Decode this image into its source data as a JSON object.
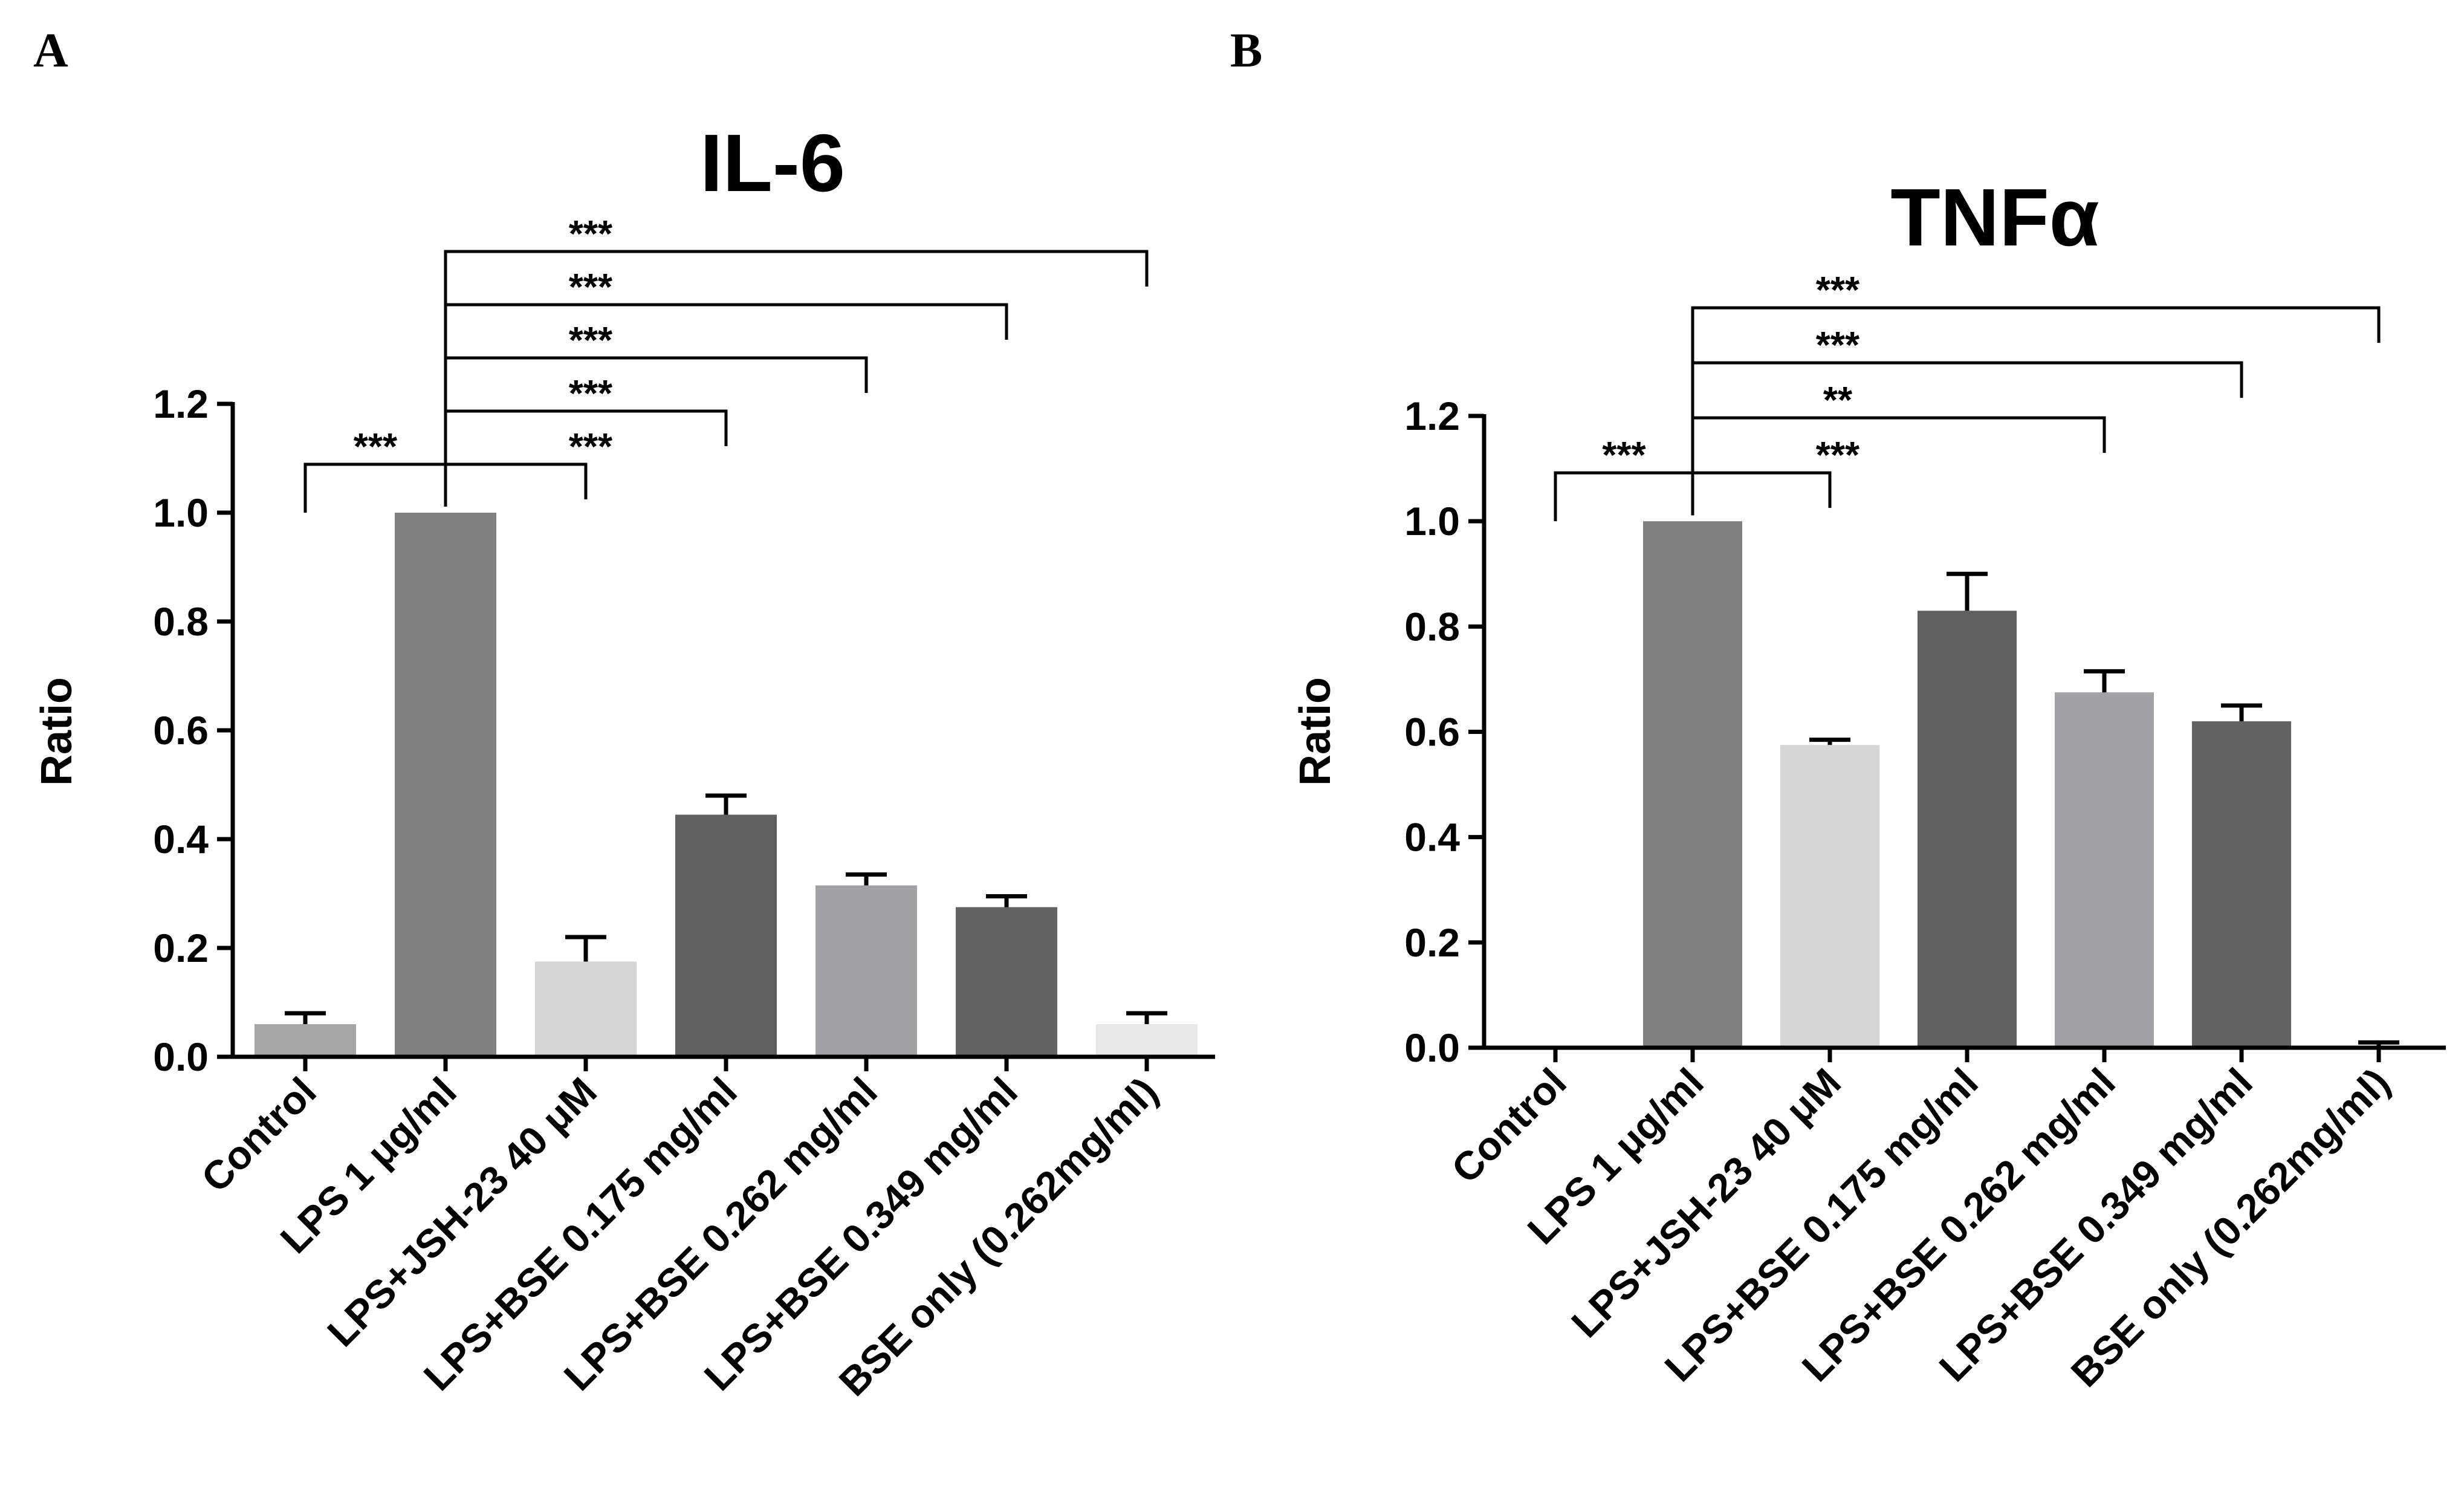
{
  "panels": {
    "A": "A",
    "B": "B"
  },
  "colors": {
    "Control": "#a6a6a6",
    "LPS 1 μg/ml": "#808080",
    "LPS+JSH-23 40  μM": "#d6d6d6",
    "LPS+BSE 0.175 mg/ml": "#5f5f5f",
    "LPS+BSE 0.262 mg/ml": "#a2a2a6",
    "LPS+BSE 0.349 mg/ml": "#636363",
    "BSE only (0.262mg/ml)": "#e6e6e6"
  },
  "chart_data": [
    {
      "type": "bar",
      "panel": "A",
      "title": "IL-6",
      "xlabel": "",
      "ylabel": "Ratio",
      "ylim": [
        0,
        1.2
      ],
      "yticks": [
        "0.0",
        "0.2",
        "0.4",
        "0.6",
        "0.8",
        "1.0",
        "1.2"
      ],
      "categories": [
        "Control",
        "LPS 1 μg/ml",
        "LPS+JSH-23 40  μM",
        "LPS+BSE 0.175 mg/ml",
        "LPS+BSE 0.262 mg/ml",
        "LPS+BSE 0.349 mg/ml",
        "BSE only (0.262mg/ml)"
      ],
      "values": [
        0.06,
        1.0,
        0.175,
        0.445,
        0.315,
        0.275,
        0.06
      ],
      "errors": [
        0.02,
        0.0,
        0.045,
        0.035,
        0.02,
        0.02,
        0.02
      ],
      "significance": [
        {
          "from": 0,
          "to": 1,
          "label": "***"
        },
        {
          "from": 1,
          "to": 2,
          "label": "***"
        },
        {
          "from": 1,
          "to": 3,
          "label": "***"
        },
        {
          "from": 1,
          "to": 4,
          "label": "***"
        },
        {
          "from": 1,
          "to": 5,
          "label": "***"
        },
        {
          "from": 1,
          "to": 6,
          "label": "***"
        }
      ]
    },
    {
      "type": "bar",
      "panel": "B",
      "title": "TNFα",
      "xlabel": "",
      "ylabel": "Ratio",
      "ylim": [
        0,
        1.2
      ],
      "yticks": [
        "0.0",
        "0.2",
        "0.4",
        "0.6",
        "0.8",
        "1.0",
        "1.2"
      ],
      "categories": [
        "Control",
        "LPS 1 μg/ml",
        "LPS+JSH-23 40  μM",
        "LPS+BSE 0.175 mg/ml",
        "LPS+BSE 0.262 mg/ml",
        "LPS+BSE 0.349 mg/ml",
        "BSE only (0.262mg/ml)"
      ],
      "values": [
        0.003,
        1.0,
        0.575,
        0.83,
        0.675,
        0.62,
        0.003
      ],
      "errors": [
        0.0,
        0.0,
        0.01,
        0.07,
        0.04,
        0.03,
        0.007
      ],
      "significance": [
        {
          "from": 0,
          "to": 1,
          "label": "***"
        },
        {
          "from": 1,
          "to": 2,
          "label": "***"
        },
        {
          "from": 1,
          "to": 4,
          "label": "**"
        },
        {
          "from": 1,
          "to": 5,
          "label": "***"
        },
        {
          "from": 1,
          "to": 6,
          "label": "***"
        }
      ]
    }
  ]
}
